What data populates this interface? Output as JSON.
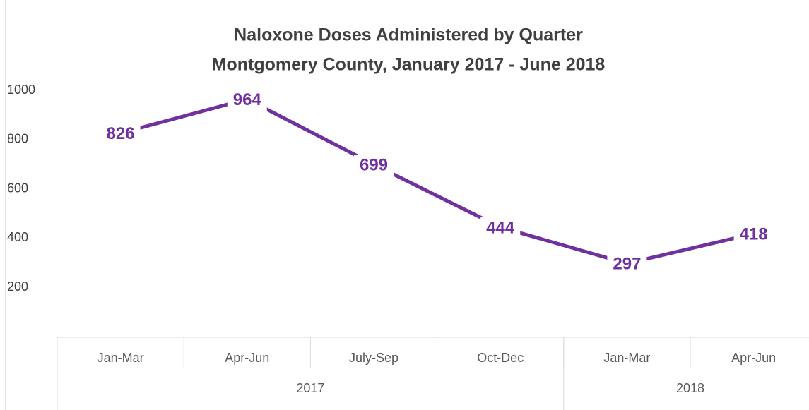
{
  "chart_data": {
    "type": "line",
    "title": "Naloxone Doses Administered by Quarter",
    "subtitle": "Montgomery County, January 2017 - June 2018",
    "categories": [
      "Jan-Mar",
      "Apr-Jun",
      "July-Sep",
      "Oct-Dec",
      "Jan-Mar",
      "Apr-Jun"
    ],
    "category_groups": [
      {
        "name": "2017",
        "count": 4
      },
      {
        "name": "2018",
        "count": 2
      }
    ],
    "series": [
      {
        "name": "Naloxone Doses",
        "color": "#7030a0",
        "values": [
          826,
          964,
          699,
          444,
          297,
          418
        ]
      }
    ],
    "ylim": [
      0,
      1000
    ],
    "yticks": [
      200,
      400,
      600,
      800,
      1000
    ],
    "grid": false
  }
}
